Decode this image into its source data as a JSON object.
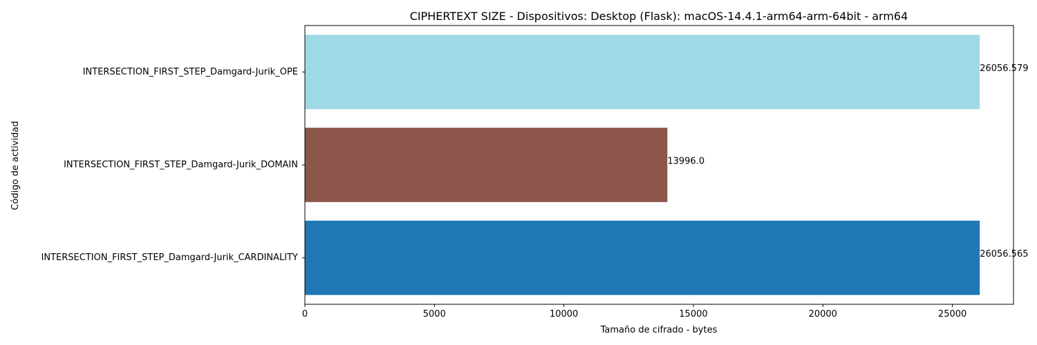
{
  "chart_data": {
    "type": "bar",
    "orientation": "horizontal",
    "title": "CIPHERTEXT SIZE - Dispositivos: Desktop (Flask): macOS-14.4.1-arm64-arm-64bit - arm64",
    "xlabel": "Tamaño de cifrado - bytes",
    "ylabel": "Código de actividad",
    "categories": [
      "INTERSECTION_FIRST_STEP_Damgard-Jurik_CARDINALITY",
      "INTERSECTION_FIRST_STEP_Damgard-Jurik_DOMAIN",
      "INTERSECTION_FIRST_STEP_Damgard-Jurik_OPE"
    ],
    "values": [
      26056.565,
      13996.0,
      26056.579
    ],
    "value_labels": [
      "26056.565",
      "13996.0",
      "26056.579"
    ],
    "colors": [
      "#1f77b4",
      "#8c564b",
      "#9edae5"
    ],
    "xlim": [
      0,
      27359.4
    ],
    "xticks": [
      0,
      5000,
      10000,
      15000,
      20000,
      25000
    ],
    "xtick_labels": [
      "0",
      "5000",
      "10000",
      "15000",
      "20000",
      "25000"
    ],
    "grid": false,
    "legend": "none"
  }
}
